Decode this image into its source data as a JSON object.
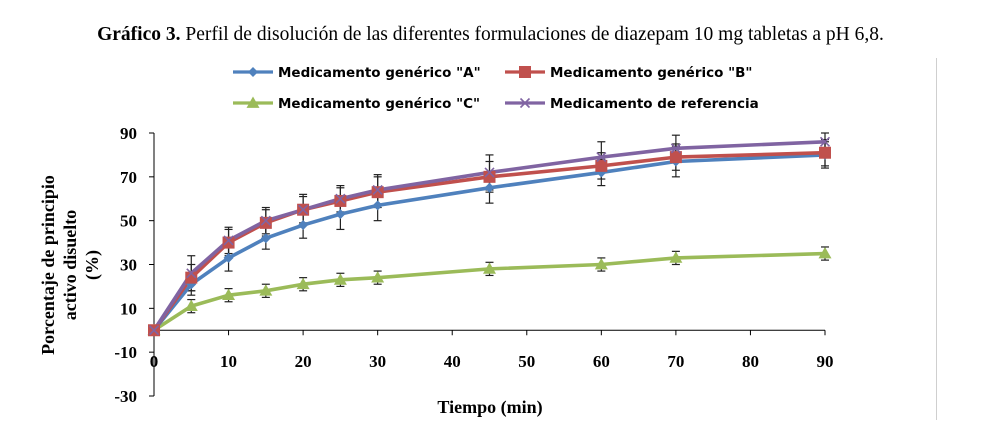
{
  "caption": {
    "label": "Gráfico 3.",
    "text": " Perfil de disolución de las diferentes formulaciones de diazepam 10 mg tabletas a pH 6,8."
  },
  "chart_data": {
    "type": "line",
    "xlabel": "Tiempo (min)",
    "ylabel_lines": [
      "Porcentaje  de  principio",
      "activo disuelto",
      "(%)"
    ],
    "xlim": [
      0,
      90
    ],
    "ylim": [
      -30,
      90
    ],
    "x_ticks": [
      0,
      10,
      20,
      30,
      40,
      50,
      60,
      70,
      80,
      90
    ],
    "y_ticks": [
      -30,
      -10,
      10,
      30,
      50,
      70,
      90
    ],
    "grid": false,
    "legend_position": "top",
    "x": [
      0,
      5,
      10,
      15,
      20,
      25,
      30,
      45,
      60,
      70,
      90
    ],
    "series": [
      {
        "name": "Medicamento genérico \"A\"",
        "color": "#4f81bd",
        "marker": "diamond",
        "values": [
          0,
          21,
          33,
          42,
          48,
          53,
          57,
          65,
          72,
          77,
          80
        ],
        "errors": [
          0,
          5,
          6,
          5,
          6,
          7,
          7,
          7,
          6,
          7,
          6
        ]
      },
      {
        "name": "Medicamento genérico \"B\"",
        "color": "#c0504d",
        "marker": "square",
        "values": [
          0,
          24,
          40,
          49,
          55,
          59,
          63,
          70,
          75,
          79,
          81
        ],
        "errors": [
          0,
          6,
          6,
          6,
          6,
          6,
          7,
          7,
          6,
          6,
          6
        ]
      },
      {
        "name": "Medicamento genérico \"C\"",
        "color": "#9bbb59",
        "marker": "triangle",
        "values": [
          0,
          11,
          16,
          18,
          21,
          23,
          24,
          28,
          30,
          33,
          35
        ],
        "errors": [
          0,
          3,
          3,
          3,
          3,
          3,
          3,
          3,
          3,
          3,
          3
        ]
      },
      {
        "name": "Medicamento de referencia",
        "color": "#8064a2",
        "marker": "x",
        "values": [
          0,
          26,
          41,
          50,
          55,
          60,
          64,
          72,
          79,
          83,
          86
        ],
        "errors": [
          0,
          8,
          6,
          6,
          7,
          6,
          7,
          8,
          7,
          6,
          4
        ]
      }
    ]
  }
}
